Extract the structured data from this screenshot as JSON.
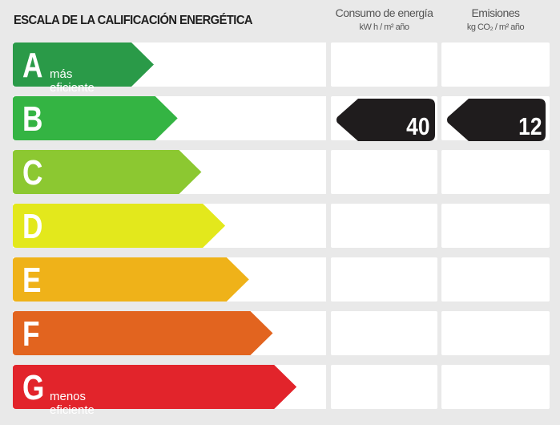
{
  "title": "ESCALA DE LA CALIFICACIÓN ENERGÉTICA",
  "columns": [
    {
      "label": "Consumo de energía",
      "unit": "kW h / m² año"
    },
    {
      "label": "Emisiones",
      "unit": "kg CO₂ / m² año"
    }
  ],
  "ratings": [
    {
      "letter": "A",
      "note": "más eficiente",
      "color": "#2a9a48"
    },
    {
      "letter": "B",
      "note": "",
      "color": "#34b443"
    },
    {
      "letter": "C",
      "note": "",
      "color": "#8cc831"
    },
    {
      "letter": "D",
      "note": "",
      "color": "#e3e81c"
    },
    {
      "letter": "E",
      "note": "",
      "color": "#efb219"
    },
    {
      "letter": "F",
      "note": "",
      "color": "#e2641f"
    },
    {
      "letter": "G",
      "note": "menos eficiente",
      "color": "#e2242b"
    }
  ],
  "current": {
    "rating": "B",
    "consumption": "40",
    "emissions": "12",
    "tag_color": "#1f1c1d"
  }
}
